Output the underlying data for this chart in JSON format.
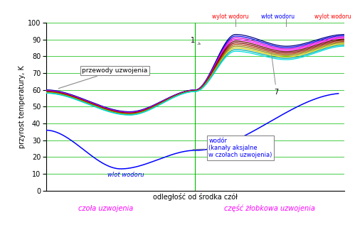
{
  "xlabel": "odległość od środka czół",
  "ylabel": "przyrost temperatury, K",
  "ylim": [
    0,
    100
  ],
  "xlim": [
    0,
    10
  ],
  "bg_color": "#ffffff",
  "grid_color": "#00bb00",
  "separator_x": 5.0,
  "winding_colors": [
    "#000080",
    "#0000ee",
    "#cc00cc",
    "#ff00ff",
    "#660000",
    "#880000",
    "#aa4400",
    "#888800",
    "#cccc00",
    "#00aaaa",
    "#00dddd"
  ],
  "hydrogen_color": "#0000ff",
  "wylot1_text": "wylot wodoru",
  "wlot_text": "włot wodoru",
  "wylot2_text": "wylot wodoru",
  "czola_text": "czoła uzwojenia",
  "czesc_text": "część żłobkowa uzwojenia",
  "wylot1_color": "#ff0000",
  "wlot_color": "#0000ff",
  "wylot2_color": "#ff0000",
  "czola_color": "#ff00ff",
  "czesc_color": "#ff00ff",
  "n_winding_lines": 11,
  "vline1_x": 6.35,
  "vline2_x": 8.05
}
